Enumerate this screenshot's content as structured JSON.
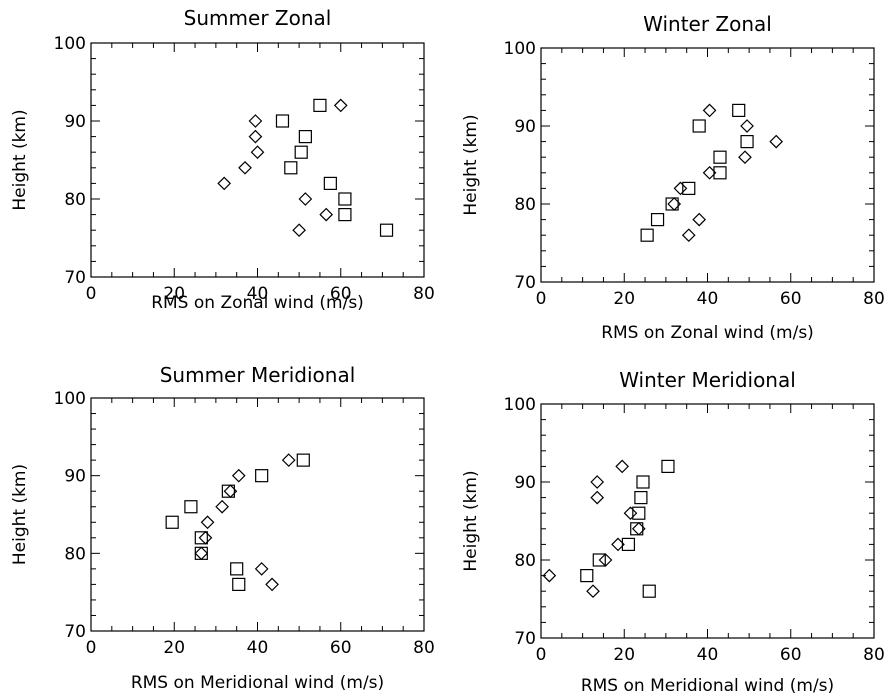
{
  "chart_data": [
    {
      "type": "scatter",
      "title": "Summer Zonal",
      "xlabel": "RMS on Zonal wind (m/s)",
      "ylabel": "Height (km)",
      "xlim": [
        0,
        80
      ],
      "ylim": [
        70,
        100
      ],
      "xticks": [
        "0",
        "20",
        "40",
        "60",
        "80"
      ],
      "yticks": [
        "70",
        "80",
        "90",
        "100"
      ],
      "series": [
        {
          "marker": "diamond",
          "points": [
            [
              60,
              92
            ],
            [
              39.5,
              90
            ],
            [
              39.5,
              88
            ],
            [
              40,
              86
            ],
            [
              37,
              84
            ],
            [
              32,
              82
            ],
            [
              51.5,
              80
            ],
            [
              56.5,
              78
            ],
            [
              50,
              76
            ]
          ]
        },
        {
          "marker": "square",
          "points": [
            [
              55,
              92
            ],
            [
              46,
              90
            ],
            [
              51.5,
              88
            ],
            [
              50.5,
              86
            ],
            [
              48,
              84
            ],
            [
              57.5,
              82
            ],
            [
              61,
              80
            ],
            [
              61,
              78
            ],
            [
              71,
              76
            ]
          ]
        }
      ]
    },
    {
      "type": "scatter",
      "title": "Winter Zonal",
      "xlabel": "RMS on Zonal wind (m/s)",
      "ylabel": "Height (km)",
      "xlim": [
        0,
        80
      ],
      "ylim": [
        70,
        100
      ],
      "xticks": [
        "0",
        "20",
        "40",
        "60",
        "80"
      ],
      "yticks": [
        "70",
        "80",
        "90",
        "100"
      ],
      "series": [
        {
          "marker": "diamond",
          "points": [
            [
              40.5,
              92
            ],
            [
              49.5,
              90
            ],
            [
              56.5,
              88
            ],
            [
              49,
              86
            ],
            [
              40.5,
              84
            ],
            [
              33.5,
              82
            ],
            [
              32,
              80
            ],
            [
              38,
              78
            ],
            [
              35.5,
              76
            ]
          ]
        },
        {
          "marker": "square",
          "points": [
            [
              47.5,
              92
            ],
            [
              38,
              90
            ],
            [
              49.5,
              88
            ],
            [
              43,
              86
            ],
            [
              43,
              84
            ],
            [
              35.5,
              82
            ],
            [
              31.5,
              80
            ],
            [
              28,
              78
            ],
            [
              25.5,
              76
            ]
          ]
        }
      ]
    },
    {
      "type": "scatter",
      "title": "Summer Meridional",
      "xlabel": "RMS on Meridional wind (m/s)",
      "ylabel": "Height (km)",
      "xlim": [
        0,
        80
      ],
      "ylim": [
        70,
        100
      ],
      "xticks": [
        "0",
        "20",
        "40",
        "60",
        "80"
      ],
      "yticks": [
        "70",
        "80",
        "90",
        "100"
      ],
      "series": [
        {
          "marker": "diamond",
          "points": [
            [
              47.5,
              92
            ],
            [
              35.5,
              90
            ],
            [
              33.5,
              88
            ],
            [
              31.5,
              86
            ],
            [
              28,
              84
            ],
            [
              27.5,
              82
            ],
            [
              26.5,
              80
            ],
            [
              41,
              78
            ],
            [
              43.5,
              76
            ]
          ]
        },
        {
          "marker": "square",
          "points": [
            [
              51,
              92
            ],
            [
              41,
              90
            ],
            [
              33,
              88
            ],
            [
              24,
              86
            ],
            [
              19.5,
              84
            ],
            [
              26.5,
              82
            ],
            [
              26.5,
              80
            ],
            [
              35,
              78
            ],
            [
              35.5,
              76
            ]
          ]
        }
      ]
    },
    {
      "type": "scatter",
      "title": "Winter Meridional",
      "xlabel": "RMS on Meridional wind (m/s)",
      "ylabel": "Height (km)",
      "xlim": [
        0,
        80
      ],
      "ylim": [
        70,
        100
      ],
      "xticks": [
        "0",
        "20",
        "40",
        "60",
        "80"
      ],
      "yticks": [
        "70",
        "80",
        "90",
        "100"
      ],
      "series": [
        {
          "marker": "diamond",
          "points": [
            [
              19.5,
              92
            ],
            [
              13.5,
              90
            ],
            [
              13.5,
              88
            ],
            [
              21.5,
              86
            ],
            [
              23.5,
              84
            ],
            [
              18.5,
              82
            ],
            [
              15.5,
              80
            ],
            [
              2,
              78
            ],
            [
              12.5,
              76
            ]
          ]
        },
        {
          "marker": "square",
          "points": [
            [
              30.5,
              92
            ],
            [
              24.5,
              90
            ],
            [
              24,
              88
            ],
            [
              23.5,
              86
            ],
            [
              23,
              84
            ],
            [
              21,
              82
            ],
            [
              14,
              80
            ],
            [
              11,
              78
            ],
            [
              26,
              76
            ]
          ]
        }
      ]
    }
  ]
}
